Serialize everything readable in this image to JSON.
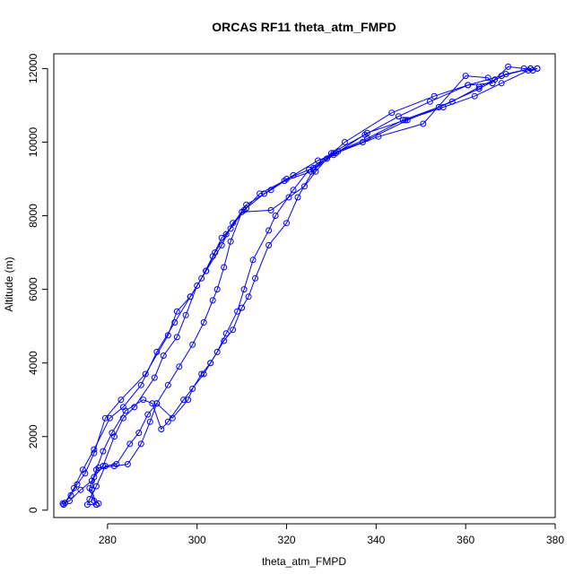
{
  "chart_data": {
    "type": "line",
    "title": "ORCAS RF11 theta_atm_FMPD",
    "xlabel": "theta_atm_FMPD",
    "ylabel": "Altitude (m)",
    "xlim": [
      268,
      380
    ],
    "ylim": [
      -200,
      12400
    ],
    "x_ticks": [
      280,
      300,
      320,
      340,
      360,
      380
    ],
    "y_ticks": [
      0,
      2000,
      4000,
      6000,
      8000,
      10000,
      12000
    ],
    "marker": "open-circle",
    "line_style": "solid",
    "color": "#0000ff",
    "grid": false,
    "series": [
      {
        "points": [
          [
            270.2,
            150
          ],
          [
            271.8,
            400
          ],
          [
            273.2,
            700
          ],
          [
            275.0,
            1000
          ],
          [
            277.0,
            1550
          ],
          [
            279.5,
            2500
          ],
          [
            283.0,
            3000
          ],
          [
            288.5,
            3700
          ],
          [
            293.5,
            4750
          ],
          [
            295.5,
            5400
          ],
          [
            298.5,
            5800
          ],
          [
            302.0,
            6500
          ],
          [
            305.5,
            7200
          ],
          [
            308.0,
            7800
          ],
          [
            311.0,
            8200
          ],
          [
            315.0,
            8600
          ],
          [
            320.0,
            9000
          ],
          [
            326.0,
            9300
          ],
          [
            330.5,
            9700
          ],
          [
            337.0,
            10000
          ],
          [
            347.0,
            10600
          ],
          [
            357.0,
            11100
          ],
          [
            363.0,
            11500
          ],
          [
            366.5,
            11700
          ],
          [
            369.5,
            12050
          ],
          [
            373.0,
            12000
          ],
          [
            375.0,
            11950
          ],
          [
            376.0,
            12000
          ]
        ]
      },
      {
        "points": [
          [
            376.0,
            12000
          ],
          [
            374.0,
            11950
          ],
          [
            368.0,
            11600
          ],
          [
            362.0,
            11250
          ],
          [
            355.0,
            10950
          ],
          [
            346.5,
            10600
          ],
          [
            338.0,
            10250
          ],
          [
            330.5,
            9650
          ],
          [
            325.5,
            9200
          ],
          [
            319.5,
            8950
          ],
          [
            314.0,
            8600
          ],
          [
            310.5,
            8150
          ],
          [
            307.5,
            7650
          ],
          [
            305.5,
            7400
          ],
          [
            303.5,
            6900
          ],
          [
            301.0,
            6300
          ],
          [
            298.5,
            5800
          ],
          [
            295.0,
            5100
          ],
          [
            291.0,
            4300
          ],
          [
            287.5,
            3400
          ],
          [
            283.5,
            2800
          ],
          [
            280.5,
            2500
          ],
          [
            277.0,
            1650
          ],
          [
            274.5,
            1100
          ],
          [
            272.5,
            600
          ],
          [
            270.5,
            200
          ]
        ]
      },
      {
        "points": [
          [
            270.0,
            180
          ],
          [
            271.5,
            250
          ],
          [
            274.0,
            550
          ],
          [
            276.5,
            800
          ],
          [
            278.0,
            1150
          ],
          [
            281.5,
            1200
          ],
          [
            284.5,
            1250
          ],
          [
            287.5,
            1800
          ],
          [
            289.5,
            2400
          ],
          [
            291.0,
            2900
          ],
          [
            293.5,
            3400
          ],
          [
            296.0,
            3900
          ],
          [
            299.0,
            4500
          ],
          [
            301.5,
            5100
          ],
          [
            303.5,
            5700
          ],
          [
            304.5,
            6000
          ],
          [
            306.0,
            6600
          ],
          [
            307.5,
            7300
          ],
          [
            310.0,
            8100
          ],
          [
            316.5,
            8150
          ],
          [
            320.5,
            8500
          ],
          [
            324.0,
            8800
          ],
          [
            326.5,
            9200
          ],
          [
            329.0,
            9550
          ],
          [
            331.5,
            9750
          ],
          [
            338.0,
            10100
          ],
          [
            346.0,
            10600
          ],
          [
            354.0,
            10950
          ],
          [
            363.0,
            11450
          ],
          [
            369.0,
            11850
          ],
          [
            374.5,
            12000
          ]
        ]
      },
      {
        "points": [
          [
            374.5,
            12000
          ],
          [
            368.0,
            11800
          ],
          [
            360.5,
            11550
          ],
          [
            352.0,
            11100
          ],
          [
            345.0,
            10700
          ],
          [
            337.5,
            10200
          ],
          [
            330.0,
            9700
          ],
          [
            325.0,
            9250
          ],
          [
            321.5,
            8700
          ],
          [
            317.5,
            8000
          ],
          [
            316.0,
            7600
          ],
          [
            312.5,
            6800
          ],
          [
            310.5,
            6000
          ],
          [
            309.0,
            5400
          ],
          [
            306.5,
            4800
          ],
          [
            304.5,
            4300
          ],
          [
            303.0,
            4000
          ],
          [
            301.0,
            3700
          ],
          [
            299.0,
            3300
          ],
          [
            298.0,
            3000
          ],
          [
            294.5,
            2500
          ],
          [
            291.0,
            2900
          ],
          [
            289.0,
            2600
          ],
          [
            287.0,
            2100
          ],
          [
            285.0,
            1800
          ],
          [
            282.0,
            1250
          ],
          [
            279.5,
            1200
          ],
          [
            277.5,
            650
          ],
          [
            276.0,
            300
          ],
          [
            275.5,
            150
          ],
          [
            277.5,
            150
          ]
        ]
      },
      {
        "points": [
          [
            277.5,
            150
          ],
          [
            276.5,
            550
          ],
          [
            277.0,
            900
          ],
          [
            279.0,
            1200
          ],
          [
            281.5,
            2000
          ],
          [
            283.5,
            2500
          ],
          [
            286.0,
            2800
          ],
          [
            290.5,
            3600
          ],
          [
            292.5,
            4200
          ],
          [
            295.5,
            4700
          ],
          [
            297.5,
            5300
          ],
          [
            300.0,
            6100
          ],
          [
            302.0,
            6500
          ],
          [
            304.0,
            7000
          ],
          [
            306.5,
            7500
          ],
          [
            311.0,
            8300
          ],
          [
            316.5,
            8700
          ],
          [
            321.5,
            9100
          ],
          [
            327.0,
            9500
          ],
          [
            331.0,
            9700
          ],
          [
            340.5,
            10150
          ],
          [
            350.5,
            10500
          ],
          [
            360.0,
            11800
          ],
          [
            365.0,
            11750
          ],
          [
            366.0,
            11600
          ]
        ]
      },
      {
        "points": [
          [
            366.0,
            11600
          ],
          [
            360.5,
            11550
          ],
          [
            353.0,
            11250
          ],
          [
            343.5,
            10800
          ],
          [
            333.0,
            10000
          ],
          [
            326.0,
            9250
          ],
          [
            322.5,
            8500
          ],
          [
            320.0,
            7800
          ],
          [
            316.0,
            7200
          ],
          [
            313.0,
            6300
          ],
          [
            311.5,
            5800
          ],
          [
            310.0,
            5500
          ],
          [
            308.0,
            4900
          ],
          [
            306.0,
            4600
          ],
          [
            303.0,
            4000
          ],
          [
            301.5,
            3700
          ],
          [
            297.0,
            3000
          ],
          [
            293.5,
            2400
          ],
          [
            292.0,
            2200
          ],
          [
            290.0,
            2900
          ],
          [
            288.0,
            3000
          ],
          [
            284.0,
            2700
          ],
          [
            281.0,
            2100
          ],
          [
            279.0,
            1600
          ],
          [
            277.5,
            1100
          ],
          [
            276.0,
            600
          ],
          [
            277.0,
            250
          ],
          [
            278.0,
            180
          ]
        ]
      }
    ]
  }
}
